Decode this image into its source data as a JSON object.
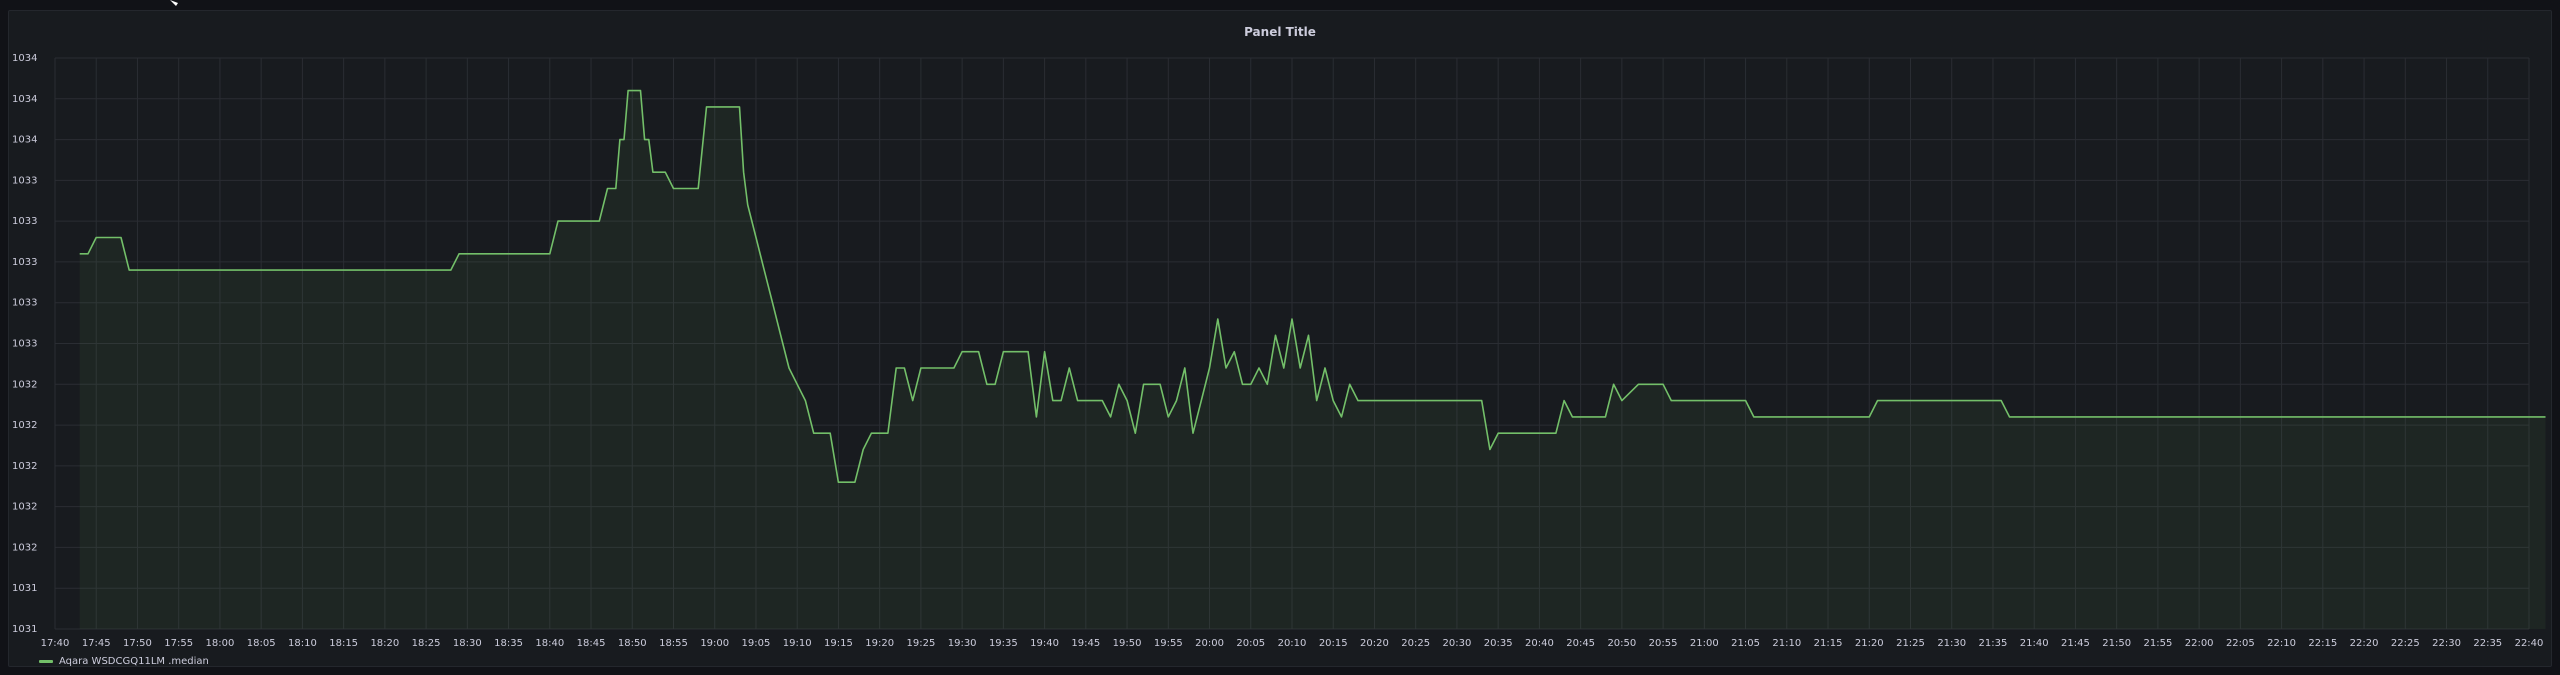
{
  "panel": {
    "title": "Panel Title"
  },
  "chart_data": {
    "type": "area",
    "title": "Panel Title",
    "grid": true,
    "legend_position": "bottom-left",
    "x_ticks": [
      "17:40",
      "17:45",
      "17:50",
      "17:55",
      "18:00",
      "18:05",
      "18:10",
      "18:15",
      "18:20",
      "18:25",
      "18:30",
      "18:35",
      "18:40",
      "18:45",
      "18:50",
      "18:55",
      "19:00",
      "19:05",
      "19:10",
      "19:15",
      "19:20",
      "19:25",
      "19:30",
      "19:35",
      "19:40",
      "19:45",
      "19:50",
      "19:55",
      "20:00",
      "20:05",
      "20:10",
      "20:15",
      "20:20",
      "20:25",
      "20:30",
      "20:35",
      "20:40",
      "20:45",
      "20:50",
      "20:55",
      "21:00",
      "21:05",
      "21:10",
      "21:15",
      "21:20",
      "21:25",
      "21:30",
      "21:35",
      "21:40",
      "21:45",
      "21:50",
      "21:55",
      "22:00",
      "22:05",
      "22:10",
      "22:15",
      "22:20",
      "22:25",
      "22:30",
      "22:35",
      "22:40"
    ],
    "y_ticks": [
      "1031",
      "1031",
      "1032",
      "1032",
      "1032",
      "1032",
      "1032",
      "1033",
      "1033",
      "1033",
      "1033",
      "1033",
      "1034",
      "1034",
      "1034"
    ],
    "ylim": [
      1031.0,
      1034.5
    ],
    "series": [
      {
        "name": "Aqara WSDCGQ11LM .median",
        "color": "#73bf69",
        "points": [
          [
            "17:43",
            1033.3
          ],
          [
            "17:44",
            1033.3
          ],
          [
            "17:45",
            1033.4
          ],
          [
            "17:48",
            1033.4
          ],
          [
            "17:49",
            1033.2
          ],
          [
            "18:28",
            1033.2
          ],
          [
            "18:29",
            1033.3
          ],
          [
            "18:40",
            1033.3
          ],
          [
            "18:41",
            1033.5
          ],
          [
            "18:46",
            1033.5
          ],
          [
            "18:47",
            1033.7
          ],
          [
            "18:48",
            1033.7
          ],
          [
            "18:48.5",
            1034.0
          ],
          [
            "18:49",
            1034.0
          ],
          [
            "18:49.5",
            1034.3
          ],
          [
            "18:51",
            1034.3
          ],
          [
            "18:51.5",
            1034.0
          ],
          [
            "18:52",
            1034.0
          ],
          [
            "18:52.5",
            1033.8
          ],
          [
            "18:54",
            1033.8
          ],
          [
            "18:55",
            1033.7
          ],
          [
            "18:58",
            1033.7
          ],
          [
            "18:59",
            1034.2
          ],
          [
            "19:03",
            1034.2
          ],
          [
            "19:03.5",
            1033.8
          ],
          [
            "19:04",
            1033.6
          ],
          [
            "19:05",
            1033.4
          ],
          [
            "19:06",
            1033.2
          ],
          [
            "19:07",
            1033.0
          ],
          [
            "19:08",
            1032.8
          ],
          [
            "19:09",
            1032.6
          ],
          [
            "19:10",
            1032.5
          ],
          [
            "19:11",
            1032.4
          ],
          [
            "19:12",
            1032.2
          ],
          [
            "19:14",
            1032.2
          ],
          [
            "19:15",
            1031.9
          ],
          [
            "19:17",
            1031.9
          ],
          [
            "19:18",
            1032.1
          ],
          [
            "19:19",
            1032.2
          ],
          [
            "19:21",
            1032.2
          ],
          [
            "19:22",
            1032.6
          ],
          [
            "19:23",
            1032.6
          ],
          [
            "19:24",
            1032.4
          ],
          [
            "19:25",
            1032.6
          ],
          [
            "19:29",
            1032.6
          ],
          [
            "19:30",
            1032.7
          ],
          [
            "19:32",
            1032.7
          ],
          [
            "19:33",
            1032.5
          ],
          [
            "19:34",
            1032.5
          ],
          [
            "19:35",
            1032.7
          ],
          [
            "19:38",
            1032.7
          ],
          [
            "19:39",
            1032.3
          ],
          [
            "19:40",
            1032.7
          ],
          [
            "19:41",
            1032.4
          ],
          [
            "19:42",
            1032.4
          ],
          [
            "19:43",
            1032.6
          ],
          [
            "19:44",
            1032.4
          ],
          [
            "19:47",
            1032.4
          ],
          [
            "19:48",
            1032.3
          ],
          [
            "19:49",
            1032.5
          ],
          [
            "19:50",
            1032.4
          ],
          [
            "19:51",
            1032.2
          ],
          [
            "19:52",
            1032.5
          ],
          [
            "19:54",
            1032.5
          ],
          [
            "19:55",
            1032.3
          ],
          [
            "19:56",
            1032.4
          ],
          [
            "19:57",
            1032.6
          ],
          [
            "19:58",
            1032.2
          ],
          [
            "19:59",
            1032.4
          ],
          [
            "20:00",
            1032.6
          ],
          [
            "20:01",
            1032.9
          ],
          [
            "20:02",
            1032.6
          ],
          [
            "20:03",
            1032.7
          ],
          [
            "20:04",
            1032.5
          ],
          [
            "20:05",
            1032.5
          ],
          [
            "20:06",
            1032.6
          ],
          [
            "20:07",
            1032.5
          ],
          [
            "20:08",
            1032.8
          ],
          [
            "20:09",
            1032.6
          ],
          [
            "20:10",
            1032.9
          ],
          [
            "20:11",
            1032.6
          ],
          [
            "20:12",
            1032.8
          ],
          [
            "20:13",
            1032.4
          ],
          [
            "20:14",
            1032.6
          ],
          [
            "20:15",
            1032.4
          ],
          [
            "20:16",
            1032.3
          ],
          [
            "20:17",
            1032.5
          ],
          [
            "20:18",
            1032.4
          ],
          [
            "20:20",
            1032.4
          ],
          [
            "20:33",
            1032.4
          ],
          [
            "20:34",
            1032.1
          ],
          [
            "20:35",
            1032.2
          ],
          [
            "20:42",
            1032.2
          ],
          [
            "20:43",
            1032.4
          ],
          [
            "20:44",
            1032.3
          ],
          [
            "20:48",
            1032.3
          ],
          [
            "20:49",
            1032.5
          ],
          [
            "20:50",
            1032.4
          ],
          [
            "20:52",
            1032.5
          ],
          [
            "20:55",
            1032.5
          ],
          [
            "20:56",
            1032.4
          ],
          [
            "21:05",
            1032.4
          ],
          [
            "21:06",
            1032.3
          ],
          [
            "21:20",
            1032.3
          ],
          [
            "21:21",
            1032.4
          ],
          [
            "21:36",
            1032.4
          ],
          [
            "21:37",
            1032.3
          ],
          [
            "22:42",
            1032.3
          ]
        ]
      }
    ]
  },
  "legend": {
    "label": "Aqara WSDCGQ11LM .median"
  }
}
